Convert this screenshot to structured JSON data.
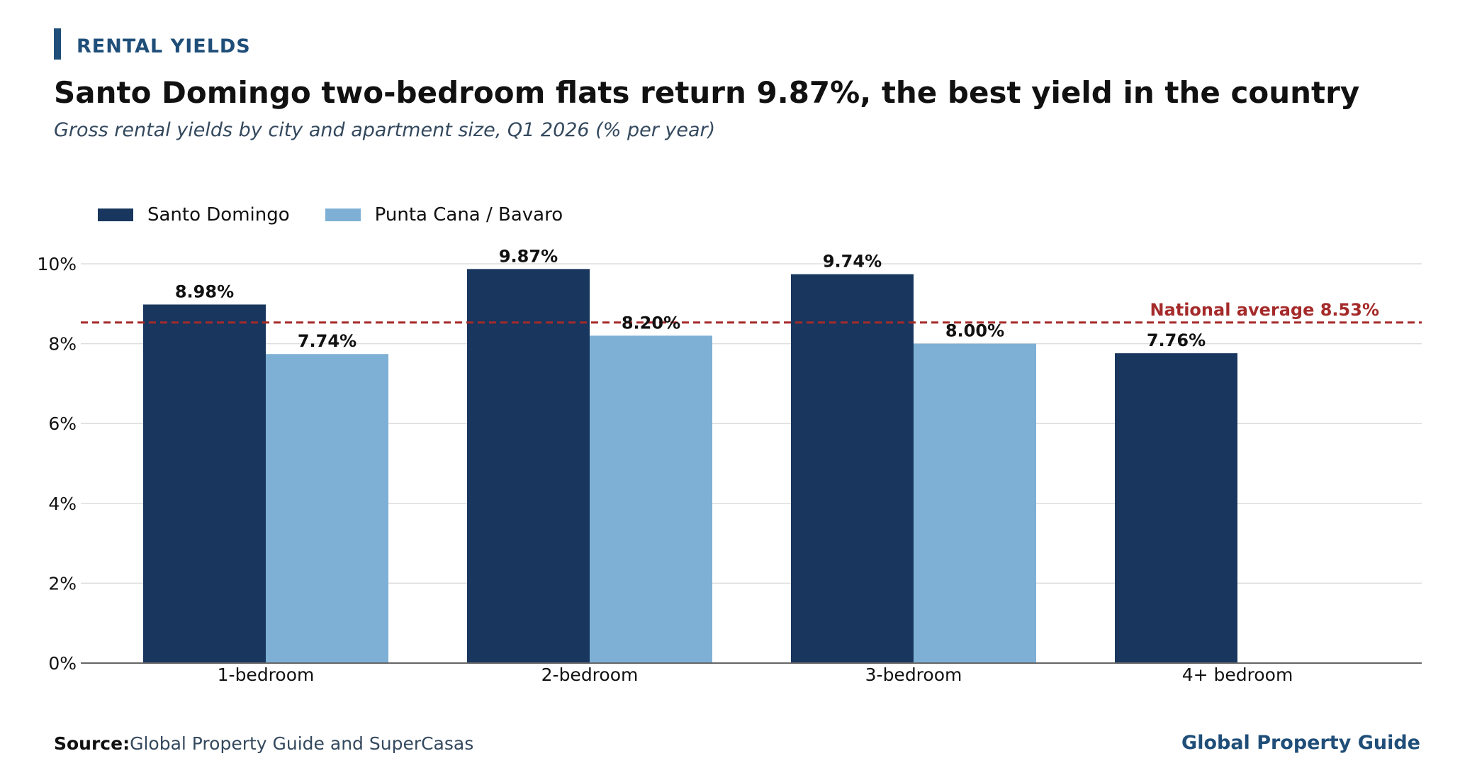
{
  "header": {
    "kicker": "RENTAL YIELDS",
    "title": "Santo Domingo two-bedroom flats return 9.87%, the best yield in the country",
    "subtitle": "Gross rental yields by city and apartment size, Q1 2026 (% per year)"
  },
  "footer": {
    "source_label": "Source:",
    "source_text": "Global Property Guide and SuperCasas",
    "brand": "Global Property Guide"
  },
  "colors": {
    "santo_domingo": "#18365e",
    "punta_cana": "#7eb0d5",
    "reference_line": "#a52a2a",
    "accent": "#1f4e79"
  },
  "chart_data": {
    "type": "bar",
    "categories": [
      "1-bedroom",
      "2-bedroom",
      "3-bedroom",
      "4+ bedroom"
    ],
    "series": [
      {
        "name": "Santo Domingo",
        "values": [
          8.98,
          9.87,
          9.74,
          7.76
        ],
        "labels": [
          "8.98%",
          "9.87%",
          "9.74%",
          "7.76%"
        ]
      },
      {
        "name": "Punta Cana / Bavaro",
        "values": [
          7.74,
          8.2,
          8.0,
          null
        ],
        "labels": [
          "7.74%",
          "8.20%",
          "8.00%",
          ""
        ]
      }
    ],
    "ylim": [
      0,
      10
    ],
    "yticks": [
      0,
      2,
      4,
      6,
      8,
      10
    ],
    "ytick_labels": [
      "0%",
      "2%",
      "4%",
      "6%",
      "8%",
      "10%"
    ],
    "xlabel": "",
    "ylabel": "",
    "grid": true,
    "legend": "top-left",
    "reference_line": {
      "value": 8.53,
      "label": "National average 8.53%"
    }
  }
}
